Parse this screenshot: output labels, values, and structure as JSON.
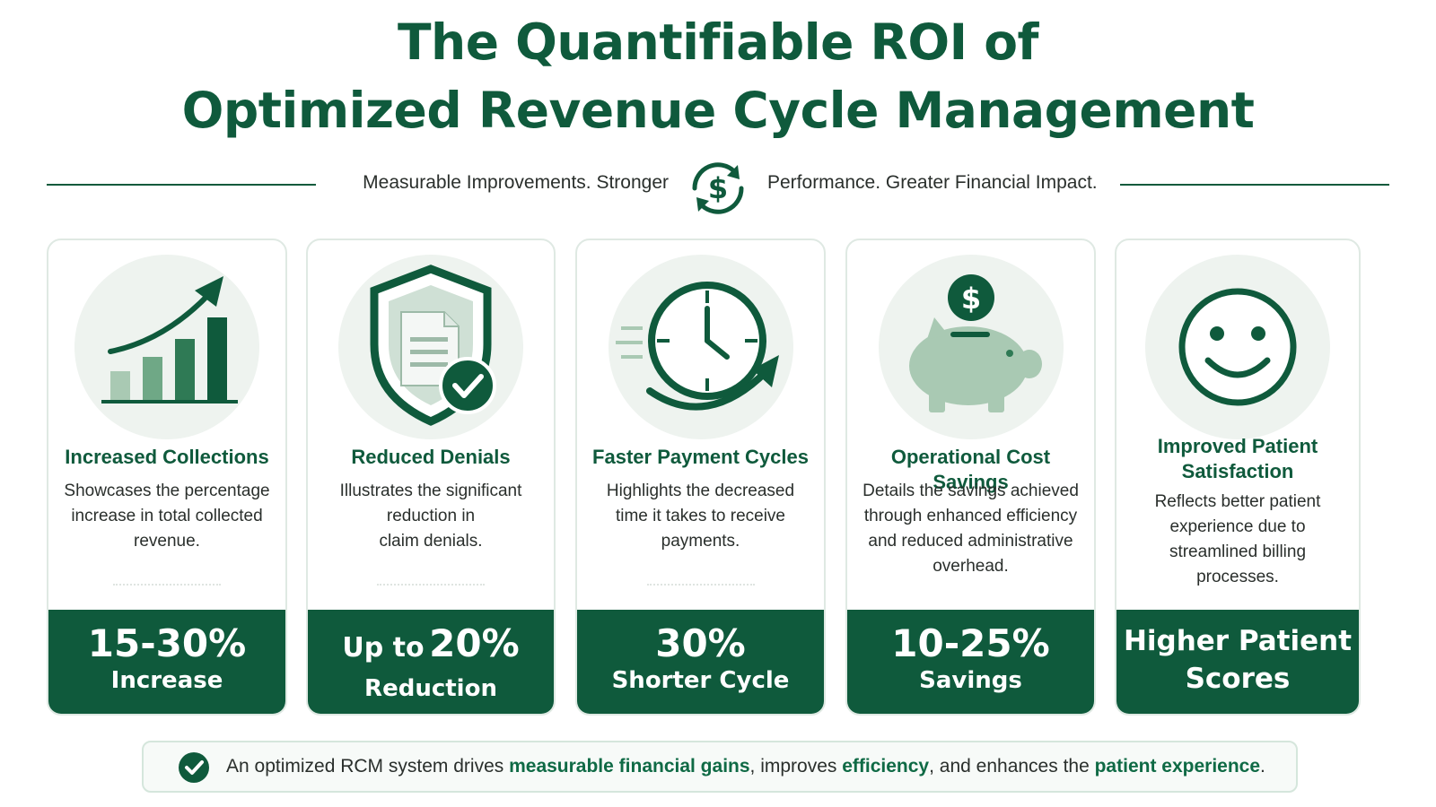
{
  "header": {
    "title_line1": "The Quantifiable ROI of",
    "title_line2": "Optimized Revenue Cycle Management",
    "subtitle_left": "Measurable Improvements. Stronger",
    "subtitle_right": "Performance. Greater Financial Impact."
  },
  "colors": {
    "primary": "#0f5a3c",
    "accent_light": "#eef3ef",
    "piggy": "#a9c9b3"
  },
  "cards": [
    {
      "icon": "bar-chart-growth-icon",
      "title": "Increased Collections",
      "desc_lines": [
        "Showcases the percentage",
        "increase in total collected",
        "revenue."
      ],
      "stat_main": "15-30%",
      "stat_sub": "Increase"
    },
    {
      "icon": "shield-document-check-icon",
      "title": "Reduced Denials",
      "desc_lines": [
        "Illustrates the significant",
        "reduction in",
        "claim denials."
      ],
      "stat_prefix": "Up to",
      "stat_main": "20%",
      "stat_sub": "Reduction"
    },
    {
      "icon": "clock-fast-icon",
      "title": "Faster Payment Cycles",
      "desc_lines": [
        "Highlights the decreased",
        "time it takes to receive",
        "payments."
      ],
      "stat_main": "30%",
      "stat_sub": "Shorter Cycle"
    },
    {
      "icon": "piggy-bank-icon",
      "title": "Operational Cost Savings",
      "desc_lines": [
        "Details the savings achieved",
        "through enhanced efficiency",
        "and reduced administrative",
        "overhead."
      ],
      "stat_main": "10-25%",
      "stat_sub": "Savings"
    },
    {
      "icon": "smiley-face-icon",
      "title_lines": [
        "Improved Patient",
        "Satisfaction"
      ],
      "desc_lines": [
        "Reflects better patient",
        "experience due to",
        "streamlined billing",
        "processes."
      ],
      "stat_line1": "Higher Patient",
      "stat_line2": "Scores"
    }
  ],
  "footer": {
    "part1": "An optimized RCM system drives ",
    "hl1": "measurable financial gains",
    "part2": ", improves ",
    "hl2": "efficiency",
    "part3": ", and enhances the ",
    "hl3": "patient experience",
    "part4": "."
  }
}
